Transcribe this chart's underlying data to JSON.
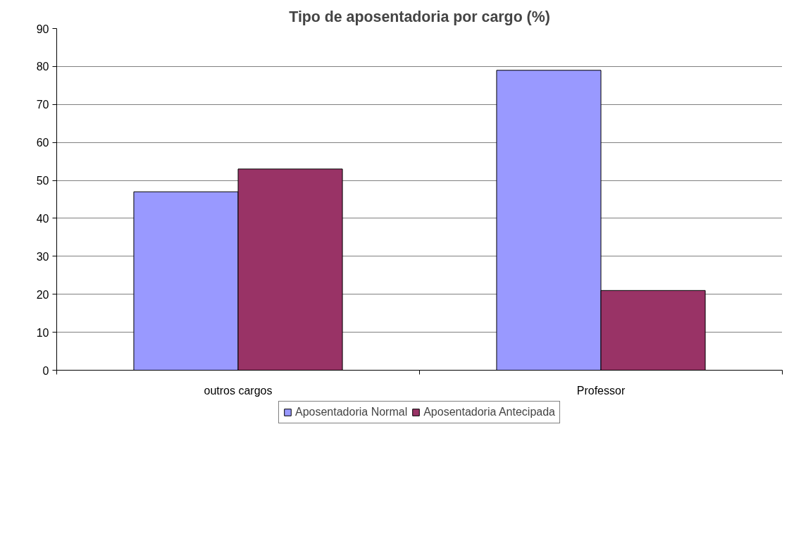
{
  "chart_data": {
    "type": "bar",
    "title": "Tipo de aposentadoria por cargo (%)",
    "categories": [
      "outros cargos",
      "Professor"
    ],
    "series": [
      {
        "name": "Aposentadoria Normal",
        "color": "#9999ff",
        "values": [
          47,
          79
        ]
      },
      {
        "name": "Aposentadoria Antecipada",
        "color": "#993366",
        "values": [
          53,
          21
        ]
      }
    ],
    "ylim": [
      0,
      90
    ],
    "yticks": [
      0,
      10,
      20,
      30,
      40,
      50,
      60,
      70,
      80,
      90
    ],
    "grid": "y",
    "legend": "bottom"
  }
}
